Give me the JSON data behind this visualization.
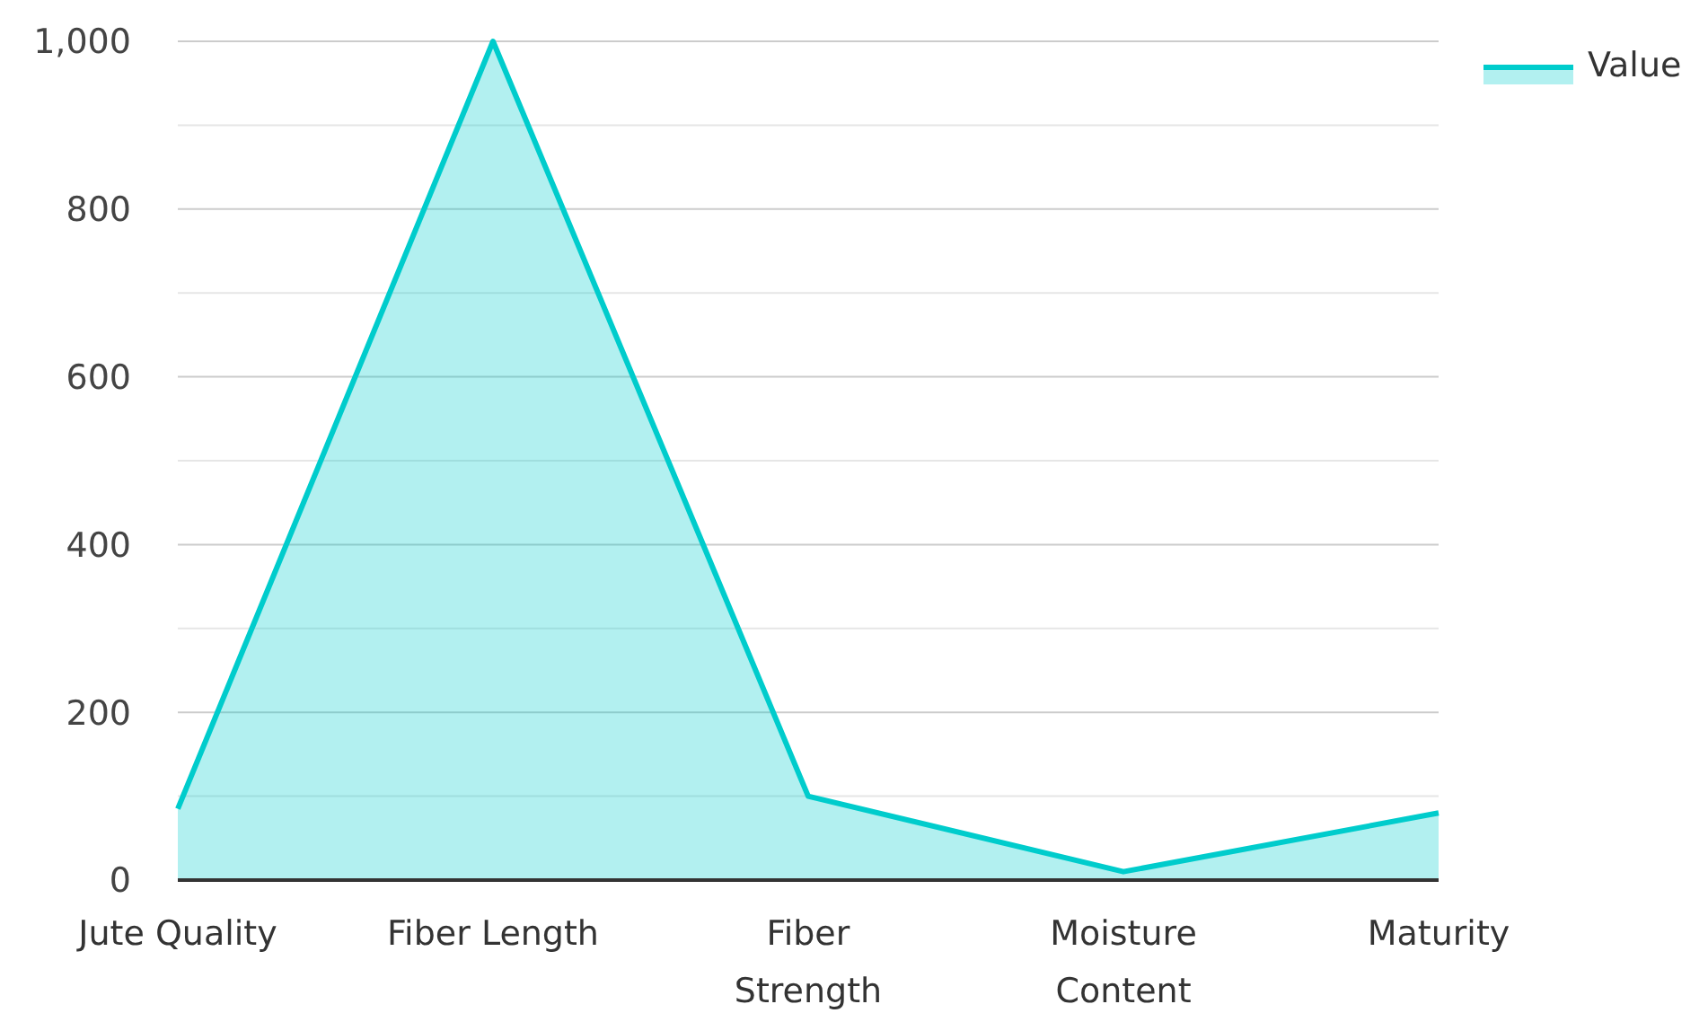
{
  "chart_data": {
    "type": "area",
    "categories": [
      "Jute Quality",
      "Fiber Length",
      "Fiber Strength",
      "Moisture Content",
      "Maturity"
    ],
    "series": [
      {
        "name": "Value",
        "color": "#00cccc",
        "values": [
          85,
          1000,
          100,
          10,
          80
        ]
      }
    ],
    "ylim": [
      0,
      1000
    ],
    "yticks": [
      0,
      {
        "value": 100,
        "label": null
      },
      200,
      {
        "value": 300,
        "label": null
      },
      400,
      {
        "value": 500,
        "label": null
      },
      600,
      {
        "value": 700,
        "label": null
      },
      800,
      {
        "value": 900,
        "label": null
      },
      {
        "value": 1000,
        "label": "1,000"
      }
    ],
    "grid": "y",
    "legend": "top right"
  }
}
